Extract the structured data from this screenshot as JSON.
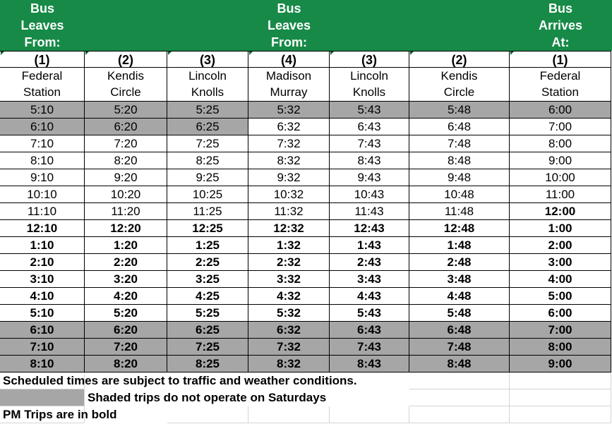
{
  "header": {
    "groups": [
      [
        "Bus",
        "Leaves",
        "From:"
      ],
      [
        "Bus",
        "Leaves",
        "From:"
      ],
      [
        "Bus",
        "Arrives",
        "At:"
      ]
    ]
  },
  "columns": [
    {
      "number": "(1)",
      "name": [
        "Federal",
        "Station"
      ]
    },
    {
      "number": "(2)",
      "name": [
        "Kendis",
        "Circle"
      ]
    },
    {
      "number": "(3)",
      "name": [
        "Lincoln",
        "Knolls"
      ]
    },
    {
      "number": "(4)",
      "name": [
        "Madison",
        "Murray"
      ]
    },
    {
      "number": "(3)",
      "name": [
        "Lincoln",
        "Knolls"
      ]
    },
    {
      "number": "(2)",
      "name": [
        "Kendis",
        "Circle"
      ]
    },
    {
      "number": "(1)",
      "name": [
        "Federal",
        "Station"
      ]
    }
  ],
  "table": {
    "rows": [
      [
        "5:10",
        "5:20",
        "5:25",
        "5:32",
        "5:43",
        "5:48",
        "6:00"
      ],
      [
        "6:10",
        "6:20",
        "6:25",
        "6:32",
        "6:43",
        "6:48",
        "7:00"
      ],
      [
        "7:10",
        "7:20",
        "7:25",
        "7:32",
        "7:43",
        "7:48",
        "8:00"
      ],
      [
        "8:10",
        "8:20",
        "8:25",
        "8:32",
        "8:43",
        "8:48",
        "9:00"
      ],
      [
        "9:10",
        "9:20",
        "9:25",
        "9:32",
        "9:43",
        "9:48",
        "10:00"
      ],
      [
        "10:10",
        "10:20",
        "10:25",
        "10:32",
        "10:43",
        "10:48",
        "11:00"
      ],
      [
        "11:10",
        "11:20",
        "11:25",
        "11:32",
        "11:43",
        "11:48",
        "12:00"
      ],
      [
        "12:10",
        "12:20",
        "12:25",
        "12:32",
        "12:43",
        "12:48",
        "1:00"
      ],
      [
        "1:10",
        "1:20",
        "1:25",
        "1:32",
        "1:43",
        "1:48",
        "2:00"
      ],
      [
        "2:10",
        "2:20",
        "2:25",
        "2:32",
        "2:43",
        "2:48",
        "3:00"
      ],
      [
        "3:10",
        "3:20",
        "3:25",
        "3:32",
        "3:43",
        "3:48",
        "4:00"
      ],
      [
        "4:10",
        "4:20",
        "4:25",
        "4:32",
        "4:43",
        "4:48",
        "5:00"
      ],
      [
        "5:10",
        "5:20",
        "5:25",
        "5:32",
        "5:43",
        "5:48",
        "6:00"
      ],
      [
        "6:10",
        "6:20",
        "6:25",
        "6:32",
        "6:43",
        "6:48",
        "7:00"
      ],
      [
        "7:10",
        "7:20",
        "7:25",
        "7:32",
        "7:43",
        "7:48",
        "8:00"
      ],
      [
        "8:10",
        "8:20",
        "8:25",
        "8:32",
        "8:43",
        "8:48",
        "9:00"
      ]
    ]
  },
  "notes": [
    "Scheduled times are subject to traffic and weather conditions.",
    "Shaded trips do not operate on Saturdays",
    "PM Trips are in bold"
  ]
}
